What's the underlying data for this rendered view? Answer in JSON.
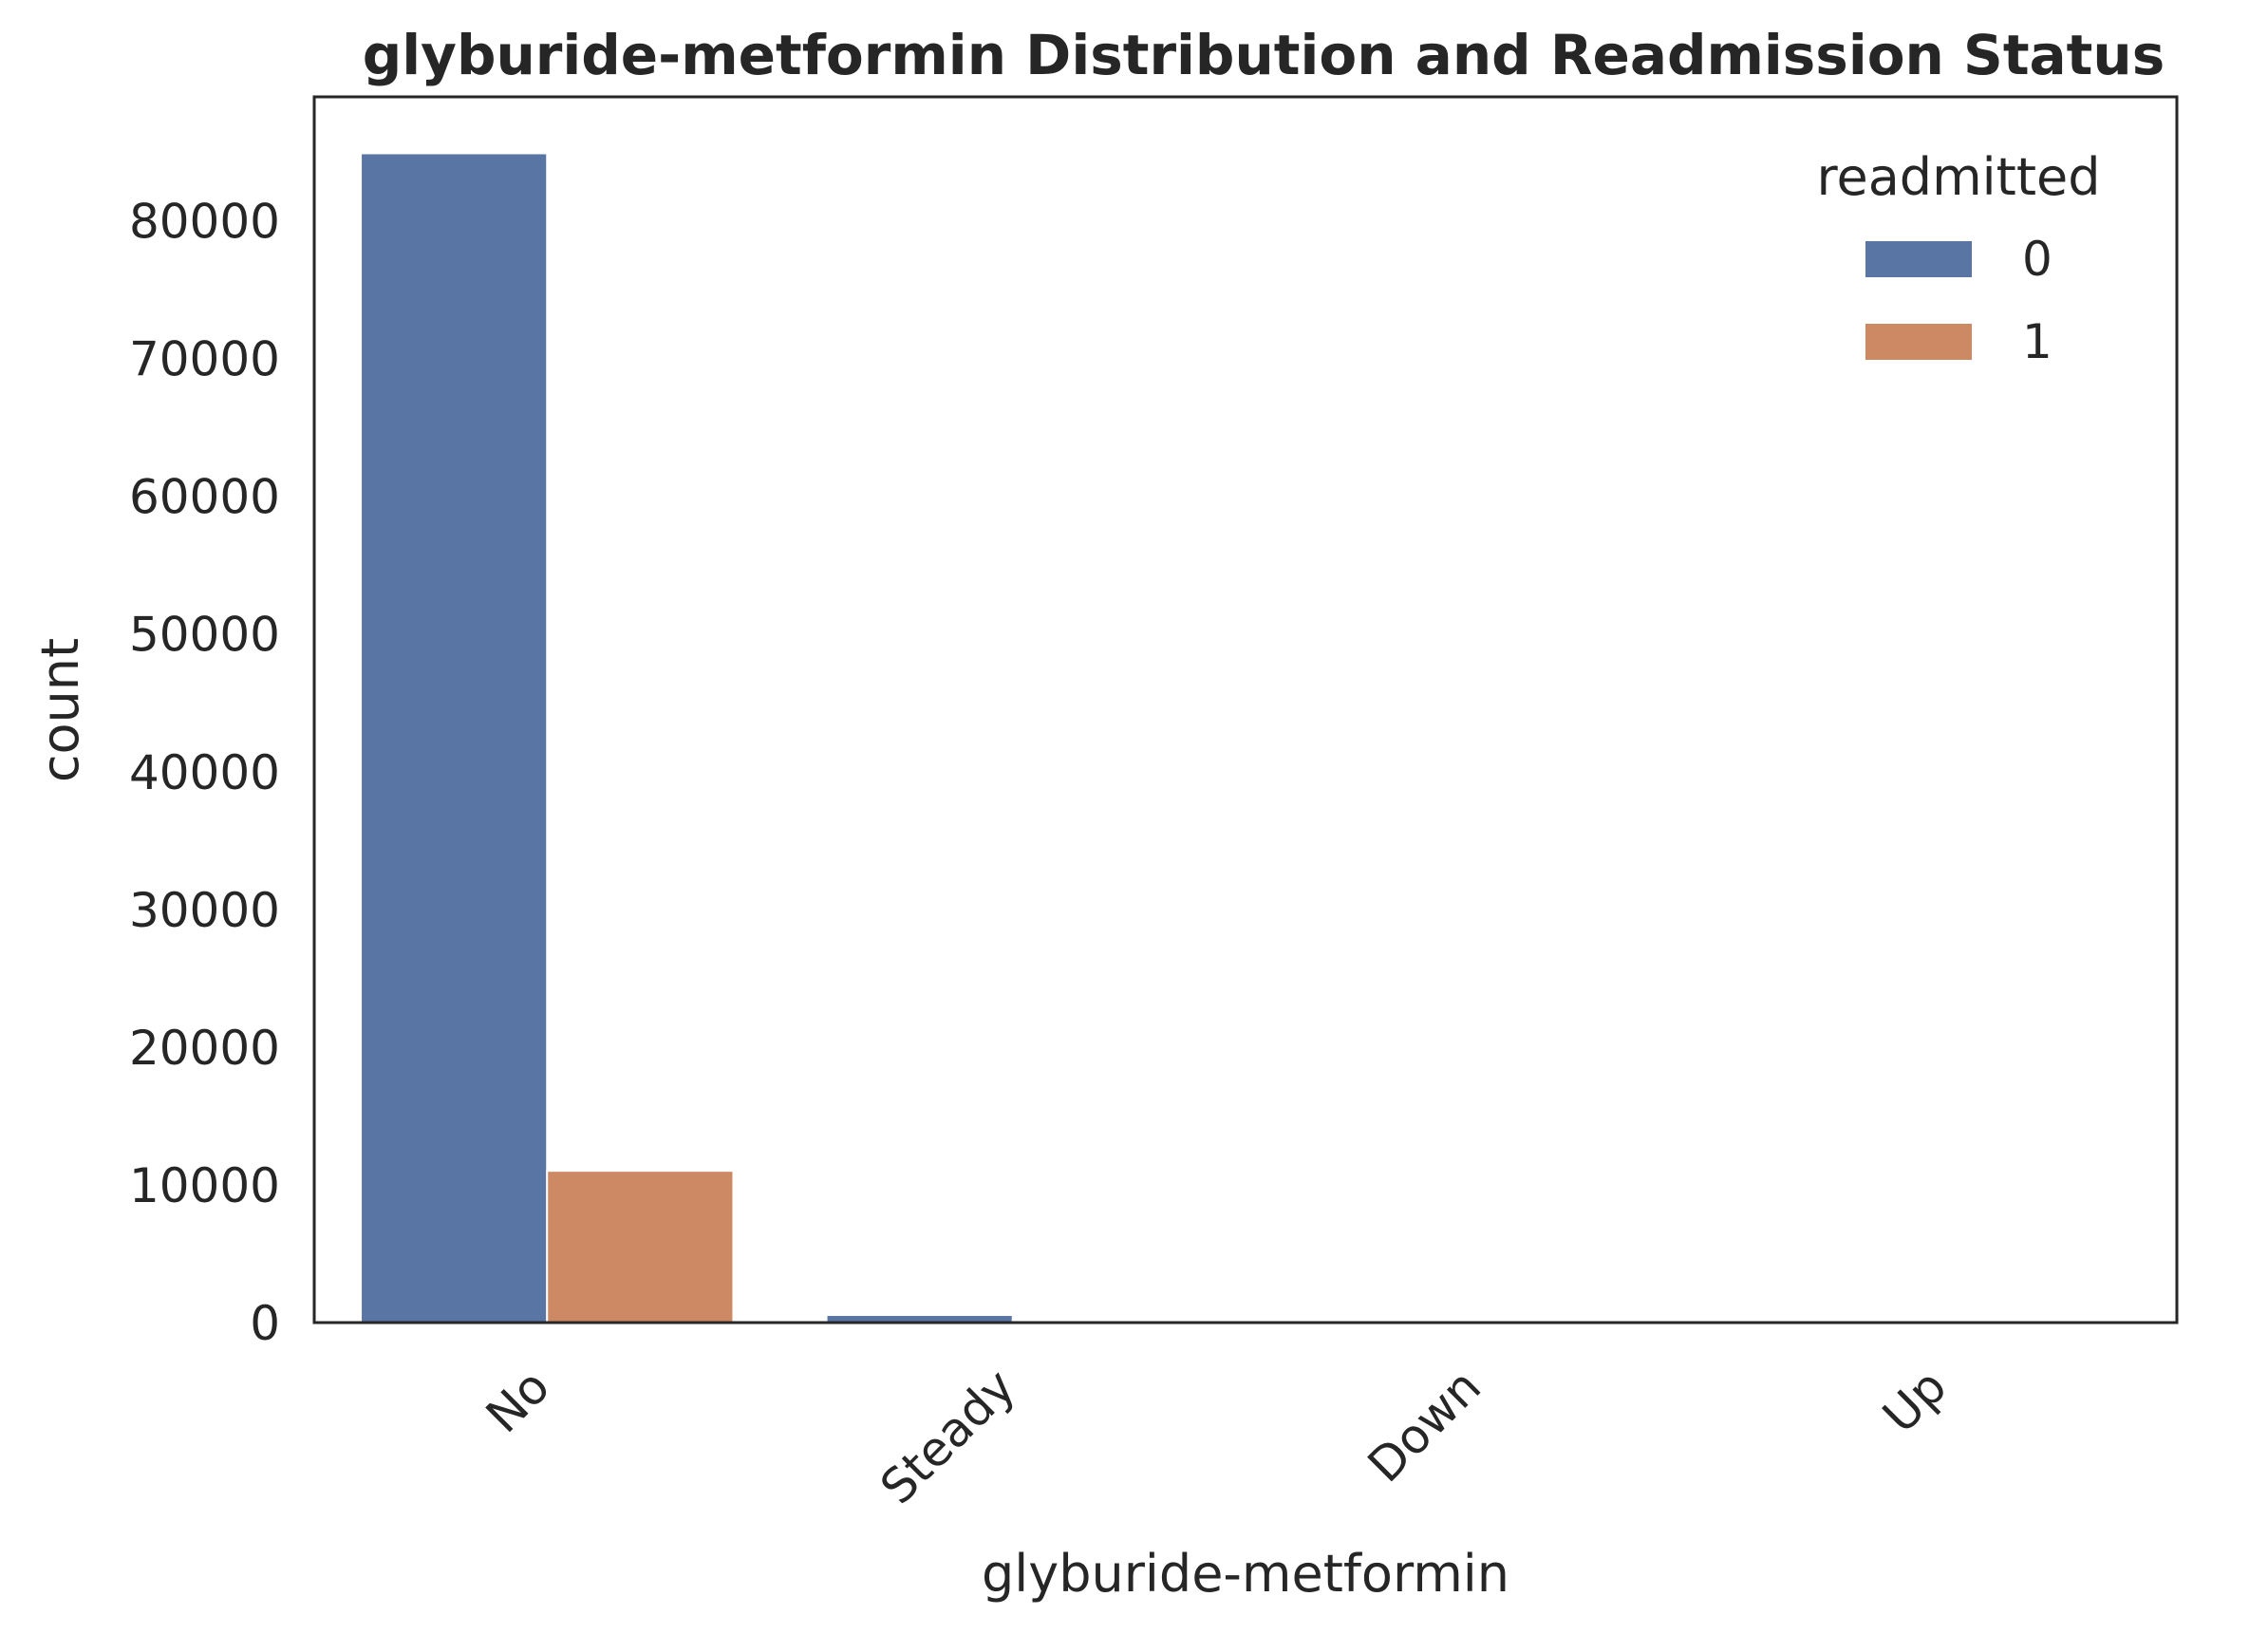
{
  "chart_data": {
    "type": "bar",
    "title": "glyburide-metformin Distribution and Readmission Status",
    "xlabel": "glyburide-metformin",
    "ylabel": "count",
    "categories": [
      "No",
      "Steady",
      "Down",
      "Up"
    ],
    "series": [
      {
        "name": "0",
        "values": [
          84900,
          550,
          5,
          5
        ],
        "color": "#5975a4"
      },
      {
        "name": "1",
        "values": [
          11020,
          130,
          0,
          0
        ],
        "color": "#cc8963"
      }
    ],
    "ylim": [
      0,
      89000
    ],
    "yticks": [
      "0",
      "10000",
      "20000",
      "30000",
      "40000",
      "50000",
      "60000",
      "70000",
      "80000"
    ],
    "legend": {
      "title": "readmitted",
      "placement": "top-right"
    },
    "grid": false
  }
}
